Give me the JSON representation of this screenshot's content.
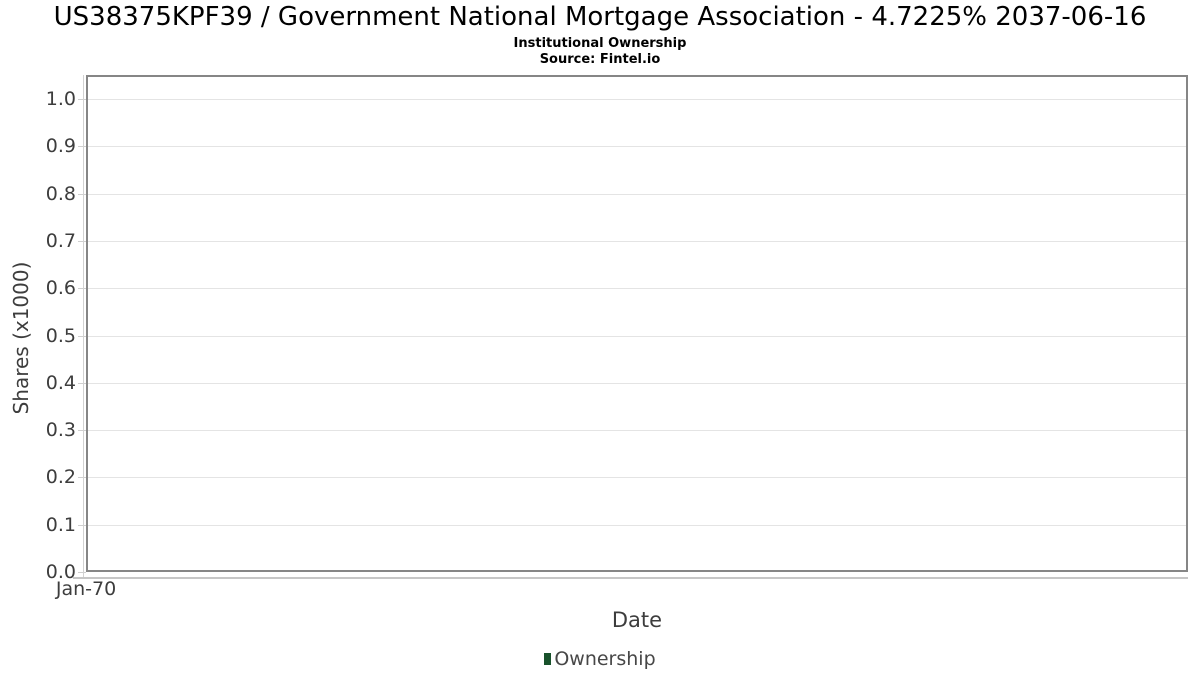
{
  "header": {
    "title": "US38375KPF39 / Government National Mortgage Association - 4.7225% 2037-06-16",
    "subtitle": "Institutional Ownership",
    "source": "Source: Fintel.io"
  },
  "chart_data": {
    "type": "line",
    "title": "US38375KPF39 / Government National Mortgage Association - 4.7225% 2037-06-16",
    "subtitle": "Institutional Ownership",
    "source": "Source: Fintel.io",
    "xlabel": "Date",
    "ylabel": "Shares (x1000)",
    "x_ticks": [
      "Jan-70"
    ],
    "y_ticks": [
      0.0,
      0.1,
      0.2,
      0.3,
      0.4,
      0.5,
      0.6,
      0.7,
      0.8,
      0.9,
      1.0
    ],
    "ylim": [
      0.0,
      1.05
    ],
    "grid": true,
    "legend": {
      "position": "bottom-center",
      "entries": [
        {
          "label": "Ownership",
          "color": "#18522b"
        }
      ]
    },
    "series": [
      {
        "name": "Ownership",
        "x": [],
        "values": []
      }
    ]
  },
  "colors": {
    "plot_border": "#868686",
    "gridline": "#e4e4e4",
    "tick_mark": "#cfcfcf",
    "axis_line": "#c6c6c6",
    "tick_text": "#3d3d3d",
    "title_text": "#000000",
    "legend_marker": "#18522b"
  }
}
